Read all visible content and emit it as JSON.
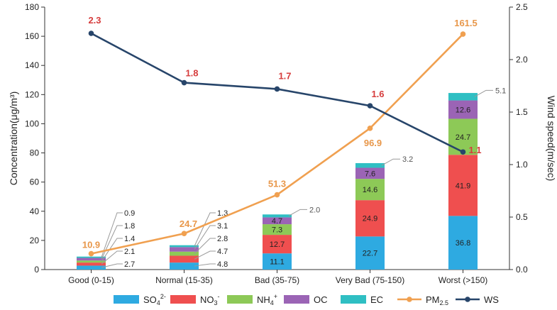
{
  "chart_data": {
    "type": "bar",
    "stacked": true,
    "categories": [
      "Good (0-15)",
      "Normal (15-35)",
      "Bad (35-75)",
      "Very Bad (75-150)",
      "Worst (>150)"
    ],
    "ylabel": "Concentration(μg/m³)",
    "y2label": "Wind speed(m/sec)",
    "ylim": [
      0,
      180
    ],
    "yticks": [
      0,
      20,
      40,
      60,
      80,
      100,
      120,
      140,
      160,
      180
    ],
    "y2lim": [
      0,
      2.5
    ],
    "y2ticks": [
      "0.0",
      "0.5",
      "1.0",
      "1.5",
      "2.0",
      "2.5"
    ],
    "series": [
      {
        "name": "SO4",
        "legend_main": "SO",
        "legend_sub": "4",
        "legend_sup": "2-",
        "color": "#2eaae1",
        "values": [
          2.7,
          4.8,
          11.1,
          22.7,
          36.8
        ],
        "labels": [
          "2.7",
          "4.8",
          "11.1",
          "22.7",
          "36.8"
        ]
      },
      {
        "name": "NO3",
        "legend_main": "NO",
        "legend_sub": "3",
        "legend_sup": "-",
        "color": "#ef4f4f",
        "values": [
          2.1,
          4.7,
          12.7,
          24.9,
          41.9
        ],
        "labels": [
          "2.1",
          "4.7",
          "12.7",
          "24.9",
          "41.9"
        ]
      },
      {
        "name": "NH4",
        "legend_main": "NH",
        "legend_sub": "4",
        "legend_sup": "+",
        "color": "#8dc957",
        "values": [
          1.4,
          2.8,
          7.3,
          14.6,
          24.7
        ],
        "labels": [
          "1.4",
          "2.8",
          "7.3",
          "14.6",
          "24.7"
        ]
      },
      {
        "name": "OC",
        "legend_main": "OC",
        "legend_sub": "",
        "legend_sup": "",
        "color": "#9b64b5",
        "values": [
          1.8,
          3.1,
          4.7,
          7.6,
          12.6
        ],
        "labels": [
          "1.8",
          "3.1",
          "4.7",
          "7.6",
          "12.6"
        ]
      },
      {
        "name": "EC",
        "legend_main": "EC",
        "legend_sub": "",
        "legend_sup": "",
        "color": "#2fbfc3",
        "values": [
          0.9,
          1.3,
          2.0,
          3.2,
          5.1
        ],
        "labels": [
          "0.9",
          "1.3",
          "2.0",
          "3.2",
          "5.1"
        ]
      }
    ],
    "lines": [
      {
        "name": "PM2.5",
        "legend_main": "PM",
        "legend_sub": "2.5",
        "color": "#f0a050",
        "axis": "left",
        "values": [
          10.9,
          24.7,
          51.3,
          96.9,
          161.5
        ],
        "labels": [
          "10.9",
          "24.7",
          "51.3",
          "96.9",
          "161.5"
        ]
      },
      {
        "name": "WS",
        "legend_main": "WS",
        "legend_sub": "",
        "color": "#27456a",
        "axis": "right",
        "values": [
          2.25,
          1.78,
          1.72,
          1.56,
          1.12
        ],
        "labels": [
          "2.3",
          "1.8",
          "1.7",
          "1.6",
          "1.1"
        ]
      }
    ]
  }
}
